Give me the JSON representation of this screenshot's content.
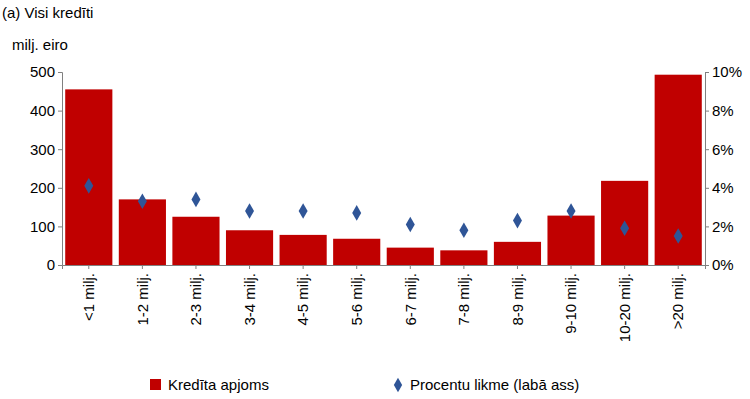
{
  "chart_data": {
    "type": "bar",
    "title": "(a) Visi kredīti",
    "y_label": "milj. eiro",
    "categories": [
      "<1 milj.",
      "1-2 milj.",
      "2-3 milj.",
      "3-4 milj.",
      "4-5 milj.",
      "5-6 milj.",
      "6-7 milj.",
      "7-8 milj.",
      "8-9 milj.",
      "9-10 milj.",
      "10-20 milj.",
      ">20 milj."
    ],
    "series": [
      {
        "name": "Kredīta apjoms",
        "type": "bar",
        "color": "#c00000",
        "values": [
          455,
          170,
          125,
          90,
          78,
          68,
          45,
          38,
          60,
          128,
          218,
          493
        ]
      },
      {
        "name": "Procentu likme (labā ass)",
        "type": "scatter",
        "marker": "diamond",
        "axis": "y2",
        "color": "#2f5597",
        "values": [
          4.1,
          3.3,
          3.4,
          2.8,
          2.8,
          2.7,
          2.1,
          1.8,
          2.3,
          2.8,
          1.9,
          1.5
        ]
      }
    ],
    "ylim": [
      0,
      500
    ],
    "yticks": [
      0,
      100,
      200,
      300,
      400,
      500
    ],
    "y2lim": [
      0,
      10
    ],
    "y2ticks": [
      {
        "value": 0,
        "label": "0%"
      },
      {
        "value": 2,
        "label": "2%"
      },
      {
        "value": 4,
        "label": "4%"
      },
      {
        "value": 6,
        "label": "6%"
      },
      {
        "value": 8,
        "label": "8%"
      },
      {
        "value": 10,
        "label": "10%"
      }
    ],
    "grid": false,
    "legend": "bottom"
  }
}
